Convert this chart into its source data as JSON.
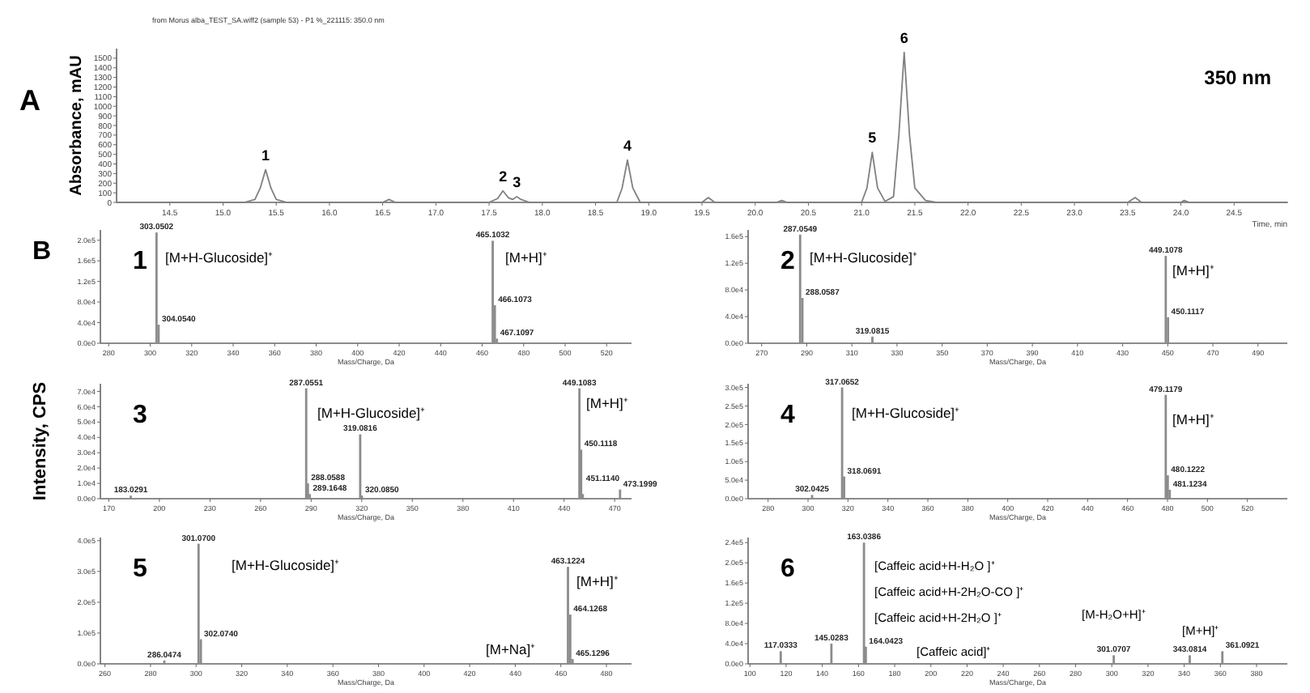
{
  "chart_data": [
    {
      "type": "line",
      "title": "A",
      "subtitle": "from Morus alba_TEST_SA.wiff2 (sample 53) - P1 %_221115: 350.0 nm",
      "xlabel": "Time, min",
      "ylabel": "Absorbance, mAU",
      "color": "#808080",
      "x": [
        14.0,
        15.2,
        15.3,
        15.35,
        15.4,
        15.45,
        15.5,
        15.6,
        16.5,
        16.56,
        16.62,
        17.5,
        17.58,
        17.63,
        17.68,
        17.72,
        17.76,
        17.8,
        17.88,
        18.7,
        18.75,
        18.8,
        18.85,
        18.92,
        19.5,
        19.56,
        19.62,
        20.2,
        20.25,
        20.3,
        21.0,
        21.05,
        21.1,
        21.15,
        21.22,
        21.3,
        21.35,
        21.4,
        21.45,
        21.5,
        21.6,
        21.7,
        23.5,
        23.57,
        23.63,
        24.0,
        24.03,
        24.08,
        25.0
      ],
      "values": [
        0,
        0,
        30,
        150,
        340,
        150,
        30,
        0,
        0,
        30,
        0,
        0,
        40,
        120,
        50,
        30,
        60,
        30,
        0,
        0,
        150,
        440,
        150,
        0,
        0,
        50,
        0,
        0,
        20,
        0,
        0,
        150,
        520,
        150,
        10,
        60,
        700,
        1560,
        700,
        150,
        20,
        0,
        0,
        50,
        0,
        0,
        20,
        0,
        0
      ],
      "xlim": [
        14,
        25
      ],
      "ylim": [
        0,
        1600
      ],
      "xticks": [
        14.5,
        {
          "value": 15,
          "label": "15.0"
        },
        15.5,
        {
          "value": 16,
          "label": "16.0"
        },
        16.5,
        {
          "value": 17,
          "label": "17.0"
        },
        17.5,
        {
          "value": 18,
          "label": "18.0"
        },
        18.5,
        {
          "value": 19,
          "label": "19.0"
        },
        19.5,
        {
          "value": 20,
          "label": "20.0"
        },
        20.5,
        {
          "value": 21,
          "label": "21.0"
        },
        21.5,
        {
          "value": 22,
          "label": "22.0"
        },
        22.5,
        {
          "value": 23,
          "label": "23.0"
        },
        23.5,
        {
          "value": 24,
          "label": "24.0"
        },
        24.5
      ],
      "yticks": [
        0,
        100,
        200,
        300,
        400,
        500,
        600,
        700,
        800,
        900,
        1000,
        1100,
        1200,
        1300,
        1400,
        1500
      ],
      "annotations": [
        "350 nm",
        {
          "text": "1",
          "x": 15.4,
          "y": 340
        },
        {
          "text": "2",
          "x": 17.63,
          "y": 120
        },
        {
          "text": "3",
          "x": 17.76,
          "y": 60
        },
        {
          "text": "4",
          "x": 18.8,
          "y": 440
        },
        {
          "text": "5",
          "x": 21.1,
          "y": 520
        },
        {
          "text": "6",
          "x": 21.4,
          "y": 1560
        }
      ]
    },
    {
      "type": "bar",
      "title": "1",
      "xlabel": "Mass/Charge, Da",
      "color": "#8c8c8c",
      "x": [
        303.0502,
        304.054,
        465.1032,
        466.1073,
        467.1097
      ],
      "values": [
        215000,
        36000,
        199000,
        74000,
        9000
      ],
      "xlim": [
        276,
        532
      ],
      "ylim": [
        0,
        220000
      ],
      "xticks": [
        280,
        300,
        320,
        340,
        360,
        380,
        400,
        420,
        440,
        460,
        480,
        500,
        520
      ],
      "yticks": [
        {
          "value": 0,
          "label": "0.0e0"
        },
        {
          "value": 40000,
          "label": "4.0e4"
        },
        {
          "value": 80000,
          "label": "8.0e4"
        },
        {
          "value": 120000,
          "label": "1.2e5"
        },
        {
          "value": 160000,
          "label": "1.6e5"
        },
        {
          "value": 200000,
          "label": "2.0e5"
        }
      ],
      "annotations": [
        "B",
        "[M+H-Glucoside]⁺",
        "[M+H]⁺",
        {
          "text": "303.0502",
          "x": 303.0502,
          "y": 215000
        },
        {
          "text": "304.0540",
          "x": 304.054,
          "y": 36000
        },
        {
          "text": "465.1032",
          "x": 465.1032,
          "y": 199000
        },
        {
          "text": "466.1073",
          "x": 466.1073,
          "y": 74000
        },
        {
          "text": "467.1097",
          "x": 467.1097,
          "y": 9000
        }
      ]
    },
    {
      "type": "bar",
      "title": "2",
      "xlabel": "Mass/Charge, Da",
      "color": "#8c8c8c",
      "x": [
        287.0549,
        288.0587,
        319.0815,
        449.1078,
        450.1117
      ],
      "values": [
        163000,
        68000,
        10000,
        131000,
        39000
      ],
      "xlim": [
        264,
        503
      ],
      "ylim": [
        0,
        170000
      ],
      "xticks": [
        270,
        290,
        310,
        330,
        350,
        370,
        390,
        410,
        430,
        450,
        470,
        490
      ],
      "yticks": [
        {
          "value": 0,
          "label": "0.0e0"
        },
        {
          "value": 40000,
          "label": "4.0e4"
        },
        {
          "value": 80000,
          "label": "8.0e4"
        },
        {
          "value": 120000,
          "label": "1.2e5"
        },
        {
          "value": 160000,
          "label": "1.6e5"
        }
      ],
      "annotations": [
        "[M+H-Glucoside]⁺",
        "[M+H]⁺",
        {
          "text": "287.0549",
          "x": 287.0549,
          "y": 163000
        },
        {
          "text": "288.0587",
          "x": 288.0587,
          "y": 68000
        },
        {
          "text": "319.0815",
          "x": 319.0815,
          "y": 10000
        },
        {
          "text": "449.1078",
          "x": 449.1078,
          "y": 131000
        },
        {
          "text": "450.1117",
          "x": 450.1117,
          "y": 39000
        }
      ]
    },
    {
      "type": "bar",
      "title": "3",
      "xlabel": "Mass/Charge, Da",
      "ylabel": "Intensity, CPS",
      "color": "#8c8c8c",
      "x": [
        183.0291,
        287.0551,
        288.0588,
        289.1648,
        319.0816,
        320.085,
        449.1083,
        450.1118,
        451.114,
        473.1999
      ],
      "values": [
        2000,
        72000,
        10000,
        3000,
        42000,
        2000,
        72000,
        32000,
        3000,
        6000
      ],
      "xlim": [
        165,
        480
      ],
      "ylim": [
        0,
        75000
      ],
      "xticks": [
        170,
        200,
        230,
        260,
        290,
        320,
        350,
        380,
        410,
        440,
        470
      ],
      "yticks": [
        {
          "value": 0,
          "label": "0.0e0"
        },
        {
          "value": 10000,
          "label": "1.0e4"
        },
        {
          "value": 20000,
          "label": "2.0e4"
        },
        {
          "value": 30000,
          "label": "3.0e4"
        },
        {
          "value": 40000,
          "label": "4.0e4"
        },
        {
          "value": 50000,
          "label": "5.0e4"
        },
        {
          "value": 60000,
          "label": "6.0e4"
        },
        {
          "value": 70000,
          "label": "7.0e4"
        }
      ],
      "annotations": [
        "[M+H-Glucoside]⁺",
        "[M+H]⁺",
        {
          "text": "183.0291",
          "x": 183.0291,
          "y": 2000
        },
        {
          "text": "287.0551",
          "x": 287.0551,
          "y": 72000
        },
        {
          "text": "288.0588",
          "x": 288.0588,
          "y": 10000
        },
        {
          "text": "289.1648",
          "x": 289.1648,
          "y": 3000
        },
        {
          "text": "319.0816",
          "x": 319.0816,
          "y": 42000
        },
        {
          "text": "320.0850",
          "x": 320.085,
          "y": 2000
        },
        {
          "text": "449.1083",
          "x": 449.1083,
          "y": 72000
        },
        {
          "text": "450.1118",
          "x": 450.1118,
          "y": 32000
        },
        {
          "text": "451.1140",
          "x": 451.114,
          "y": 3000
        },
        {
          "text": "473.1999",
          "x": 473.1999,
          "y": 6000
        }
      ]
    },
    {
      "type": "bar",
      "title": "4",
      "xlabel": "Mass/Charge, Da",
      "color": "#8c8c8c",
      "x": [
        302.0425,
        317.0652,
        318.0691,
        479.1179,
        480.1222,
        481.1234
      ],
      "values": [
        10000,
        300000,
        60000,
        280000,
        63000,
        24000
      ],
      "xlim": [
        270,
        540
      ],
      "ylim": [
        0,
        310000
      ],
      "xticks": [
        280,
        300,
        320,
        340,
        360,
        380,
        400,
        420,
        440,
        460,
        480,
        500,
        520
      ],
      "yticks": [
        {
          "value": 0,
          "label": "0.0e0"
        },
        {
          "value": 50000,
          "label": "5.0e4"
        },
        {
          "value": 100000,
          "label": "1.0e5"
        },
        {
          "value": 150000,
          "label": "1.5e5"
        },
        {
          "value": 200000,
          "label": "2.0e5"
        },
        {
          "value": 250000,
          "label": "2.5e5"
        },
        {
          "value": 300000,
          "label": "3.0e5"
        }
      ],
      "annotations": [
        "[M+H-Glucoside]⁺",
        "[M+H]⁺",
        {
          "text": "302.0425",
          "x": 302.0425,
          "y": 10000
        },
        {
          "text": "317.0652",
          "x": 317.0652,
          "y": 300000
        },
        {
          "text": "318.0691",
          "x": 318.0691,
          "y": 60000
        },
        {
          "text": "479.1179",
          "x": 479.1179,
          "y": 280000
        },
        {
          "text": "480.1222",
          "x": 480.1222,
          "y": 63000
        },
        {
          "text": "481.1234",
          "x": 481.1234,
          "y": 24000
        }
      ]
    },
    {
      "type": "bar",
      "title": "5",
      "xlabel": "Mass/Charge, Da",
      "color": "#8c8c8c",
      "x": [
        286.0474,
        301.07,
        302.074,
        463.1224,
        464.1268,
        465.1296
      ],
      "values": [
        11000,
        390000,
        80000,
        315000,
        160000,
        16000
      ],
      "xlim": [
        258,
        491
      ],
      "ylim": [
        0,
        410000
      ],
      "xticks": [
        260,
        280,
        300,
        320,
        340,
        360,
        380,
        400,
        420,
        440,
        460,
        480
      ],
      "yticks": [
        {
          "value": 0,
          "label": "0.0e0"
        },
        {
          "value": 100000,
          "label": "1.0e5"
        },
        {
          "value": 200000,
          "label": "2.0e5"
        },
        {
          "value": 300000,
          "label": "3.0e5"
        },
        {
          "value": 400000,
          "label": "4.0e5"
        }
      ],
      "annotations": [
        "[M+H-Glucoside]⁺",
        "[M+H]⁺",
        "[M+Na]⁺",
        {
          "text": "286.0474",
          "x": 286.0474,
          "y": 11000
        },
        {
          "text": "301.0700",
          "x": 301.07,
          "y": 390000
        },
        {
          "text": "302.0740",
          "x": 302.074,
          "y": 80000
        },
        {
          "text": "463.1224",
          "x": 463.1224,
          "y": 315000
        },
        {
          "text": "464.1268",
          "x": 464.1268,
          "y": 160000
        },
        {
          "text": "465.1296",
          "x": 465.1296,
          "y": 16000
        }
      ]
    },
    {
      "type": "bar",
      "title": "6",
      "xlabel": "Mass/Charge, Da",
      "color": "#8c8c8c",
      "x": [
        117.0333,
        145.0283,
        163.0386,
        164.0423,
        301.0707,
        343.0814,
        361.0921
      ],
      "values": [
        25000,
        40000,
        240000,
        34000,
        17000,
        17000,
        25000
      ],
      "xlim": [
        99,
        397
      ],
      "ylim": [
        0,
        250000
      ],
      "xticks": [
        100,
        120,
        140,
        160,
        180,
        200,
        220,
        240,
        260,
        280,
        300,
        320,
        340,
        360,
        380
      ],
      "yticks": [
        {
          "value": 0,
          "label": "0.0e0"
        },
        {
          "value": 40000,
          "label": "4.0e4"
        },
        {
          "value": 80000,
          "label": "8.0e4"
        },
        {
          "value": 120000,
          "label": "1.2e5"
        },
        {
          "value": 160000,
          "label": "1.6e5"
        },
        {
          "value": 200000,
          "label": "2.0e5"
        },
        {
          "value": 240000,
          "label": "2.4e5"
        }
      ],
      "annotations": [
        "[Caffeic acid+H-H₂O ]⁺",
        "[Caffeic acid+H-2H₂O-CO ]⁺",
        "[Caffeic acid+H-2H₂O ]⁺",
        "[Caffeic acid]⁺",
        "[M-H₂O+H]⁺",
        "[M+H]⁺",
        {
          "text": "117.0333",
          "x": 117.0333,
          "y": 25000
        },
        {
          "text": "145.0283",
          "x": 145.0283,
          "y": 40000
        },
        {
          "text": "163.0386",
          "x": 163.0386,
          "y": 240000
        },
        {
          "text": "164.0423",
          "x": 164.0423,
          "y": 34000
        },
        {
          "text": "301.0707",
          "x": 301.0707,
          "y": 17000
        },
        {
          "text": "343.0814",
          "x": 343.0814,
          "y": 17000
        },
        {
          "text": "361.0921",
          "x": 361.0921,
          "y": 25000
        }
      ]
    }
  ]
}
